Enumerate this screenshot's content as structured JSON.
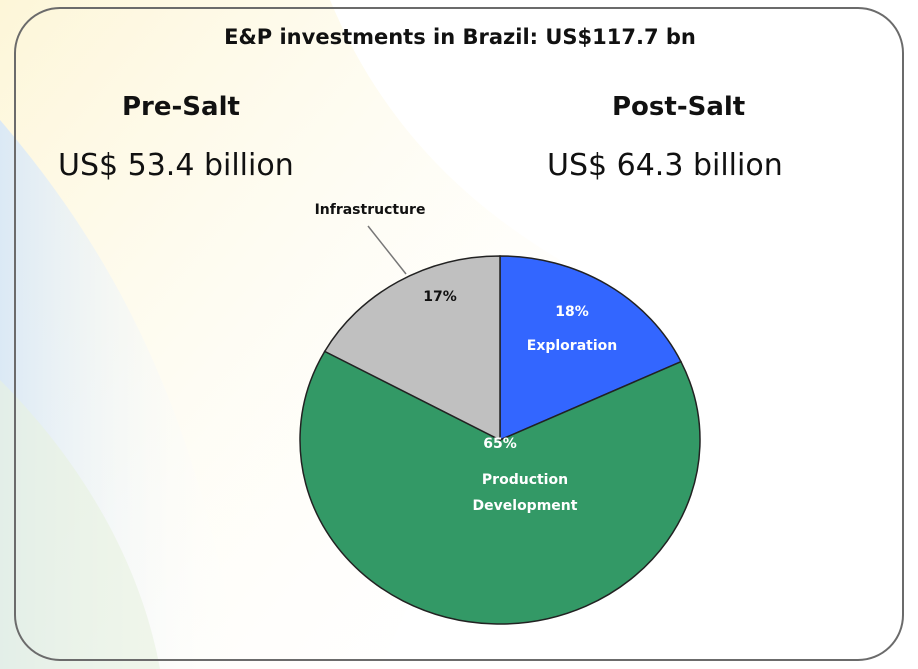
{
  "chart_data": {
    "type": "pie",
    "title": "E&P investments in Brazil: US$117.7 bn",
    "annotations": [
      {
        "heading": "Pre-Salt",
        "text": "US$ 53.4 billion"
      },
      {
        "heading": "Post-Salt",
        "text": "US$ 64.3 billion"
      }
    ],
    "categories": [
      "Exploration",
      "Production Development",
      "Infrastructure"
    ],
    "values": [
      18,
      65,
      17
    ],
    "value_labels": [
      "18%",
      "65%",
      "17%"
    ],
    "colors": [
      "#3366ff",
      "#339966",
      "#c0c0c0"
    ]
  }
}
